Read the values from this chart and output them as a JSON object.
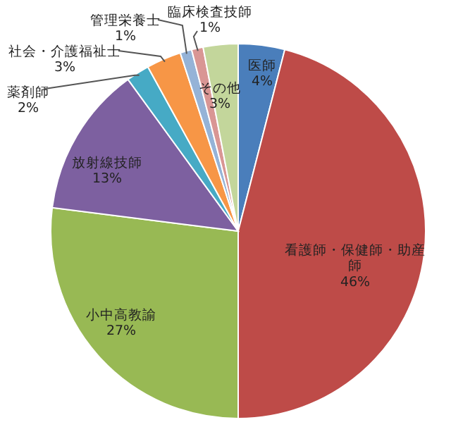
{
  "chart_data": {
    "type": "pie",
    "categories": [
      "医師",
      "看護師・保健師・助産師",
      "小中高教諭",
      "放射線技師",
      "薬剤師",
      "社会・介護福祉士",
      "管理栄養士",
      "臨床検査技師",
      "その他"
    ],
    "values": [
      4,
      46,
      27,
      13,
      2,
      3,
      1,
      1,
      3
    ],
    "colors": [
      "#4a7ebb",
      "#be4b48",
      "#98b954",
      "#7d60a0",
      "#46aac5",
      "#f79646",
      "#95b3d7",
      "#d99694",
      "#c3d69b"
    ],
    "value_labels": [
      "4%",
      "46%",
      "27%",
      "13%",
      "2%",
      "3%",
      "1%",
      "1%",
      "3%"
    ]
  }
}
